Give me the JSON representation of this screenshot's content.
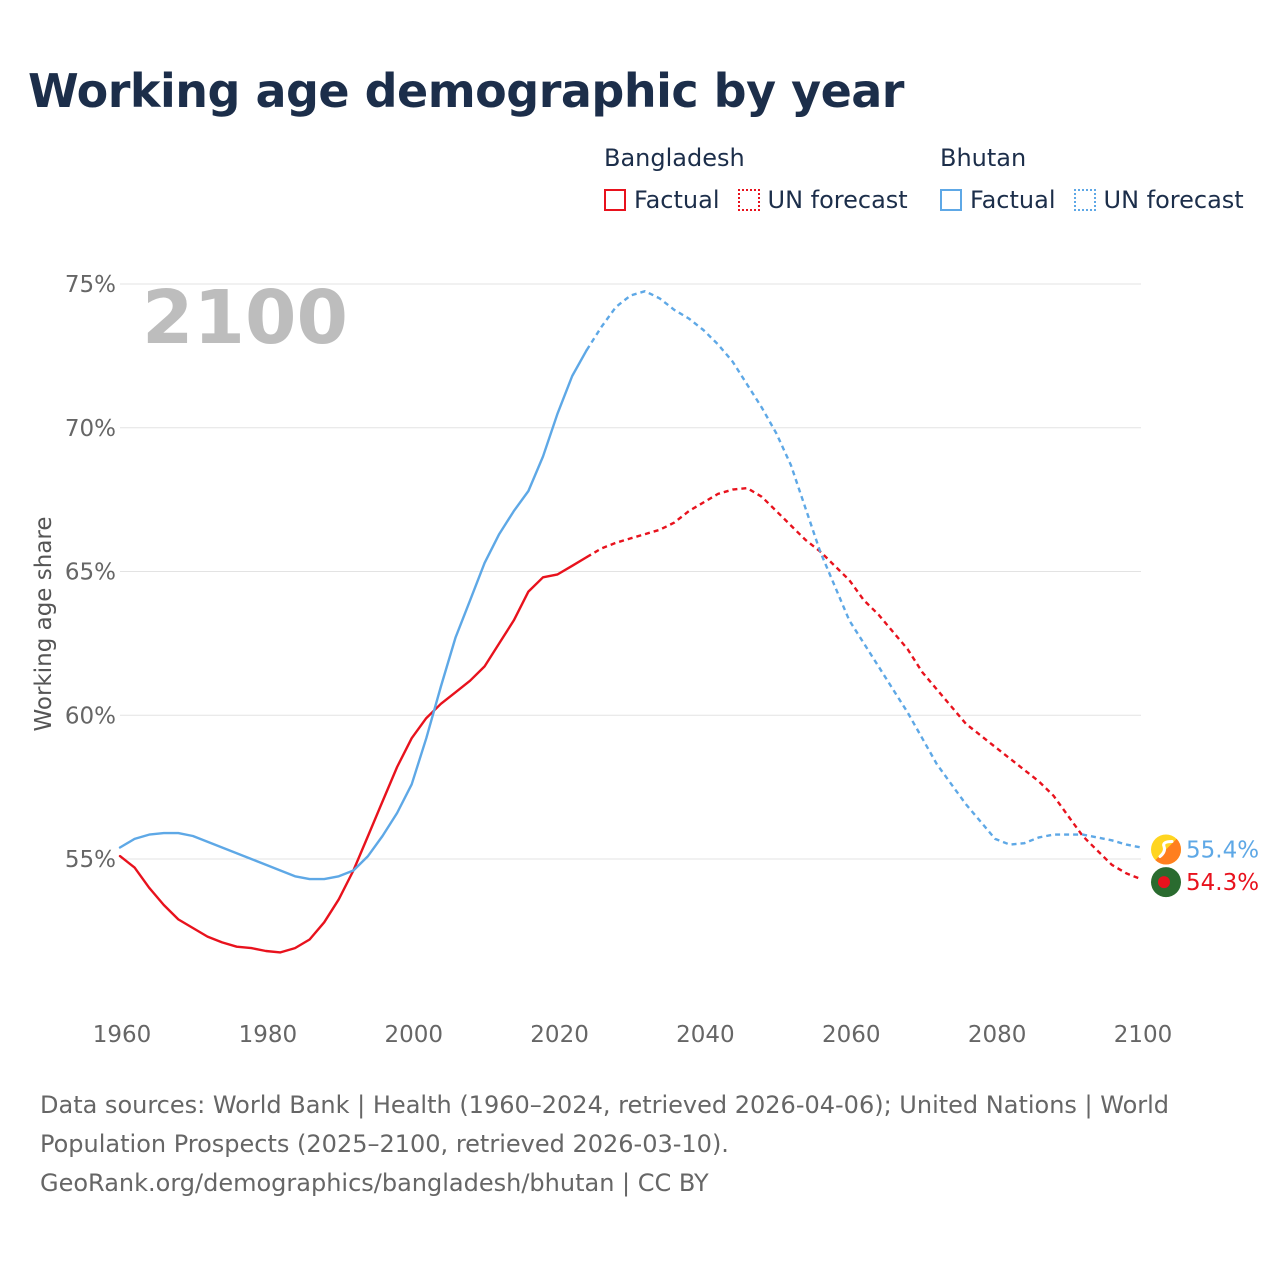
{
  "title": "Working age demographic by year",
  "legend": {
    "groups": [
      {
        "name": "Bangladesh",
        "factual": "Factual",
        "forecast": "UN forecast",
        "color": "#e8121d"
      },
      {
        "name": "Bhutan",
        "factual": "Factual",
        "forecast": "UN forecast",
        "color": "#5ea8e6"
      }
    ]
  },
  "footer": {
    "sources": "Data sources: World Bank | Health (1960–2024, retrieved 2026-04-06); United Nations | World Population Prospects (2025–2100, retrieved 2026-03-10).",
    "credit": "GeoRank.org/demographics/bangladesh/bhutan | CC BY"
  },
  "chart_data": {
    "type": "line",
    "title": "Working age demographic by year",
    "ylabel": "Working age share",
    "xlabel": "",
    "year_watermark": "2100",
    "xlim": [
      1960,
      2100
    ],
    "ylim": [
      50.5,
      75
    ],
    "x_ticks": [
      "1960",
      "1980",
      "2000",
      "2020",
      "2040",
      "2060",
      "2080",
      "2100"
    ],
    "y_ticks": [
      {
        "value": 55,
        "label": "55%"
      },
      {
        "value": 60,
        "label": "60%"
      },
      {
        "value": 65,
        "label": "65%"
      },
      {
        "value": 70,
        "label": "70%"
      },
      {
        "value": 75,
        "label": "75%"
      }
    ],
    "factual_end_year": 2024,
    "series": [
      {
        "name": "Bangladesh",
        "color": "#e8121d",
        "end_label": "54.3%",
        "flag": "bangladesh-flag",
        "points": [
          [
            1960,
            55.1
          ],
          [
            1962,
            54.7
          ],
          [
            1964,
            54.0
          ],
          [
            1966,
            53.4
          ],
          [
            1968,
            52.9
          ],
          [
            1970,
            52.6
          ],
          [
            1972,
            52.3
          ],
          [
            1974,
            52.1
          ],
          [
            1976,
            51.95
          ],
          [
            1978,
            51.9
          ],
          [
            1980,
            51.8
          ],
          [
            1982,
            51.75
          ],
          [
            1984,
            51.9
          ],
          [
            1986,
            52.2
          ],
          [
            1988,
            52.8
          ],
          [
            1990,
            53.6
          ],
          [
            1992,
            54.6
          ],
          [
            1994,
            55.8
          ],
          [
            1996,
            57.0
          ],
          [
            1998,
            58.2
          ],
          [
            2000,
            59.2
          ],
          [
            2002,
            59.9
          ],
          [
            2004,
            60.4
          ],
          [
            2006,
            60.8
          ],
          [
            2008,
            61.2
          ],
          [
            2010,
            61.7
          ],
          [
            2012,
            62.5
          ],
          [
            2014,
            63.3
          ],
          [
            2016,
            64.3
          ],
          [
            2018,
            64.8
          ],
          [
            2020,
            64.9
          ],
          [
            2022,
            65.2
          ],
          [
            2024,
            65.5
          ],
          [
            2026,
            65.8
          ],
          [
            2028,
            66.0
          ],
          [
            2030,
            66.15
          ],
          [
            2032,
            66.3
          ],
          [
            2034,
            66.45
          ],
          [
            2036,
            66.7
          ],
          [
            2038,
            67.1
          ],
          [
            2040,
            67.4
          ],
          [
            2042,
            67.7
          ],
          [
            2044,
            67.85
          ],
          [
            2046,
            67.9
          ],
          [
            2048,
            67.6
          ],
          [
            2050,
            67.1
          ],
          [
            2052,
            66.6
          ],
          [
            2054,
            66.1
          ],
          [
            2056,
            65.7
          ],
          [
            2058,
            65.2
          ],
          [
            2060,
            64.7
          ],
          [
            2062,
            64.0
          ],
          [
            2064,
            63.5
          ],
          [
            2066,
            62.9
          ],
          [
            2068,
            62.3
          ],
          [
            2070,
            61.5
          ],
          [
            2072,
            60.9
          ],
          [
            2074,
            60.3
          ],
          [
            2076,
            59.7
          ],
          [
            2078,
            59.3
          ],
          [
            2080,
            58.9
          ],
          [
            2082,
            58.5
          ],
          [
            2084,
            58.1
          ],
          [
            2086,
            57.7
          ],
          [
            2088,
            57.2
          ],
          [
            2090,
            56.5
          ],
          [
            2092,
            55.8
          ],
          [
            2094,
            55.3
          ],
          [
            2096,
            54.8
          ],
          [
            2098,
            54.5
          ],
          [
            2100,
            54.3
          ]
        ]
      },
      {
        "name": "Bhutan",
        "color": "#5ea8e6",
        "end_label": "55.4%",
        "flag": "bhutan-flag",
        "points": [
          [
            1960,
            55.4
          ],
          [
            1962,
            55.7
          ],
          [
            1964,
            55.85
          ],
          [
            1966,
            55.9
          ],
          [
            1968,
            55.9
          ],
          [
            1970,
            55.8
          ],
          [
            1972,
            55.6
          ],
          [
            1974,
            55.4
          ],
          [
            1976,
            55.2
          ],
          [
            1978,
            55.0
          ],
          [
            1980,
            54.8
          ],
          [
            1982,
            54.6
          ],
          [
            1984,
            54.4
          ],
          [
            1986,
            54.3
          ],
          [
            1988,
            54.3
          ],
          [
            1990,
            54.4
          ],
          [
            1992,
            54.6
          ],
          [
            1994,
            55.1
          ],
          [
            1996,
            55.8
          ],
          [
            1998,
            56.6
          ],
          [
            2000,
            57.6
          ],
          [
            2002,
            59.2
          ],
          [
            2004,
            61.0
          ],
          [
            2006,
            62.7
          ],
          [
            2008,
            64.0
          ],
          [
            2010,
            65.3
          ],
          [
            2012,
            66.3
          ],
          [
            2014,
            67.1
          ],
          [
            2016,
            67.8
          ],
          [
            2018,
            69.0
          ],
          [
            2020,
            70.5
          ],
          [
            2022,
            71.8
          ],
          [
            2024,
            72.7
          ],
          [
            2026,
            73.5
          ],
          [
            2028,
            74.2
          ],
          [
            2030,
            74.6
          ],
          [
            2032,
            74.75
          ],
          [
            2034,
            74.5
          ],
          [
            2036,
            74.1
          ],
          [
            2038,
            73.8
          ],
          [
            2040,
            73.4
          ],
          [
            2042,
            72.9
          ],
          [
            2044,
            72.3
          ],
          [
            2046,
            71.5
          ],
          [
            2048,
            70.7
          ],
          [
            2050,
            69.8
          ],
          [
            2052,
            68.7
          ],
          [
            2054,
            67.2
          ],
          [
            2056,
            65.7
          ],
          [
            2058,
            64.5
          ],
          [
            2060,
            63.3
          ],
          [
            2062,
            62.5
          ],
          [
            2064,
            61.7
          ],
          [
            2066,
            60.9
          ],
          [
            2068,
            60.1
          ],
          [
            2070,
            59.2
          ],
          [
            2072,
            58.3
          ],
          [
            2074,
            57.6
          ],
          [
            2076,
            56.9
          ],
          [
            2078,
            56.3
          ],
          [
            2080,
            55.7
          ],
          [
            2082,
            55.5
          ],
          [
            2084,
            55.55
          ],
          [
            2086,
            55.75
          ],
          [
            2088,
            55.85
          ],
          [
            2090,
            55.85
          ],
          [
            2092,
            55.85
          ],
          [
            2094,
            55.75
          ],
          [
            2096,
            55.65
          ],
          [
            2098,
            55.5
          ],
          [
            2100,
            55.4
          ]
        ]
      }
    ]
  }
}
